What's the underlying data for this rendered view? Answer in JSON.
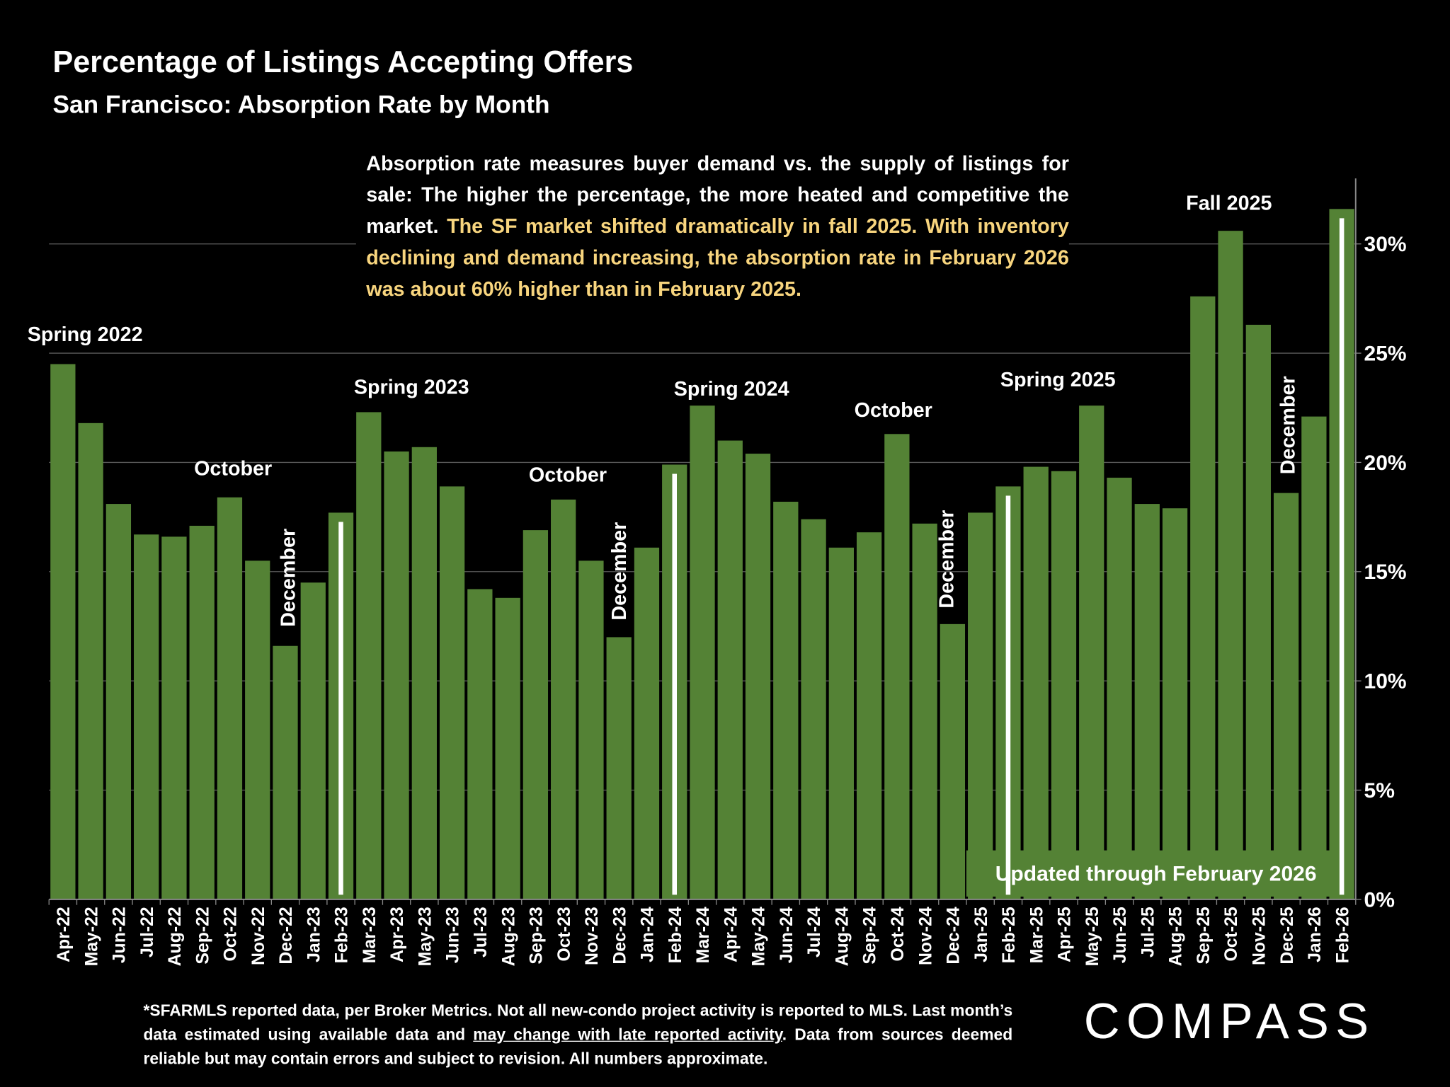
{
  "chart_data": {
    "type": "bar",
    "title": "Percentage of Listings Accepting Offers",
    "subtitle": "San Francisco:  Absorption Rate by Month",
    "description": {
      "plain": "Absorption rate measures buyer demand vs. the supply of listings for sale: The higher the percentage, the more heated and competitive the market. ",
      "highlight": "The SF market shifted dramatically in fall 2025. With inventory declining and demand increasing, the absorption rate in February 2026 was about 60% higher than in February 2025."
    },
    "categories": [
      "Apr-22",
      "May-22",
      "Jun-22",
      "Jul-22",
      "Aug-22",
      "Sep-22",
      "Oct-22",
      "Nov-22",
      "Dec-22",
      "Jan-23",
      "Feb-23",
      "Mar-23",
      "Apr-23",
      "May-23",
      "Jun-23",
      "Jul-23",
      "Aug-23",
      "Sep-23",
      "Oct-23",
      "Nov-23",
      "Dec-23",
      "Jan-24",
      "Feb-24",
      "Mar-24",
      "Apr-24",
      "May-24",
      "Jun-24",
      "Jul-24",
      "Aug-24",
      "Sep-24",
      "Oct-24",
      "Nov-24",
      "Dec-24",
      "Jan-25",
      "Feb-25",
      "Mar-25",
      "Apr-25",
      "May-25",
      "Jun-25",
      "Jul-25",
      "Aug-25",
      "Sep-25",
      "Oct-25",
      "Nov-25",
      "Dec-25",
      "Jan-26",
      "Feb-26"
    ],
    "values": [
      24.5,
      21.8,
      18.1,
      16.7,
      16.6,
      17.1,
      18.4,
      15.5,
      11.6,
      14.5,
      17.7,
      22.3,
      20.5,
      20.7,
      18.9,
      14.2,
      13.8,
      16.9,
      18.3,
      15.5,
      12.0,
      16.1,
      19.9,
      22.6,
      21.0,
      20.4,
      18.2,
      17.4,
      16.1,
      16.8,
      21.3,
      17.2,
      12.6,
      17.7,
      18.9,
      19.8,
      19.6,
      22.6,
      19.3,
      18.1,
      17.9,
      27.6,
      30.6,
      26.3,
      18.6,
      22.1,
      31.6
    ],
    "color": "#548235",
    "ylim": [
      0,
      33
    ],
    "yticks": [
      {
        "value": 0,
        "label": "0%"
      },
      {
        "value": 5,
        "label": "5%"
      },
      {
        "value": 10,
        "label": "10%"
      },
      {
        "value": 15,
        "label": "15%"
      },
      {
        "value": 20,
        "label": "20%"
      },
      {
        "value": 25,
        "label": "25%"
      },
      {
        "value": 30,
        "label": "30%"
      }
    ],
    "grid": true,
    "annotations": [
      {
        "text": "Spring 2022"
      },
      {
        "text": "October"
      },
      {
        "text": "December"
      },
      {
        "text": "Spring 2023"
      },
      {
        "text": "October"
      },
      {
        "text": "December"
      },
      {
        "text": "Spring 2024"
      },
      {
        "text": "October"
      },
      {
        "text": "December"
      },
      {
        "text": "Spring 2025"
      },
      {
        "text": "Fall 2025"
      },
      {
        "text": "December"
      }
    ],
    "updated_note": "Updated through February 2026",
    "footnote": {
      "before": "*SFARMLS reported data, per Broker Metrics. Not all new-condo project activity is reported to MLS. Last month’s data estimated using available data and ",
      "underlined": "may change with late reported activity",
      "after": ". Data from sources deemed reliable but may contain errors and subject to revision. All numbers approximate."
    },
    "logo": "COMPASS"
  }
}
